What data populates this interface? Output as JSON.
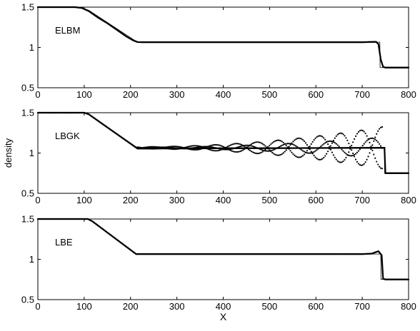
{
  "chart_data": [
    {
      "type": "line",
      "panel_label": "ELBM",
      "xlim": [
        0,
        800
      ],
      "ylim": [
        0.5,
        1.5
      ],
      "xticks": [
        "0",
        "100",
        "200",
        "300",
        "400",
        "500",
        "600",
        "700",
        "800"
      ],
      "yticks": [
        "0.5",
        "1",
        "1.5"
      ],
      "xlabel": "",
      "ylabel": "",
      "series": [
        {
          "style": "reference-thin",
          "x": [
            0,
            90,
            110,
            215,
            225,
            738,
            738.5,
            800
          ],
          "y": [
            1.5,
            1.5,
            1.46,
            1.065,
            1.065,
            1.065,
            0.75,
            0.75
          ]
        },
        {
          "style": "simulated-dots",
          "x": [
            0,
            80,
            95,
            110,
            130,
            150,
            170,
            190,
            205,
            215,
            225,
            300,
            400,
            500,
            600,
            700,
            730,
            735,
            740,
            745,
            750,
            800
          ],
          "y": [
            1.5,
            1.5,
            1.49,
            1.45,
            1.37,
            1.3,
            1.22,
            1.14,
            1.09,
            1.067,
            1.065,
            1.065,
            1.065,
            1.065,
            1.065,
            1.065,
            1.07,
            1.04,
            0.85,
            0.76,
            0.75,
            0.75
          ]
        }
      ]
    },
    {
      "type": "line",
      "panel_label": "LBGK",
      "xlim": [
        0,
        800
      ],
      "ylim": [
        0.5,
        1.5
      ],
      "xticks": [
        "0",
        "100",
        "200",
        "300",
        "400",
        "500",
        "600",
        "700",
        "800"
      ],
      "yticks": [
        "0.5",
        "1",
        "1.5"
      ],
      "xlabel": "",
      "ylabel": "density",
      "series": [
        {
          "style": "reference-thin",
          "x": [
            0,
            105,
            215,
            748,
            748.5,
            800
          ],
          "y": [
            1.5,
            1.5,
            1.065,
            1.065,
            0.75,
            0.75
          ]
        },
        {
          "style": "simulated-dots",
          "x": [
            0,
            100,
            110,
            215,
            748,
            750,
            800
          ],
          "y": [
            1.5,
            1.5,
            1.48,
            1.055,
            1.065,
            0.75,
            0.75
          ]
        },
        {
          "style": "oscillation-dots",
          "x_range": [
            215,
            745
          ],
          "center": 1.065,
          "amplitude_start": 0.012,
          "amplitude_end": 0.26,
          "wavelength": 90
        }
      ]
    },
    {
      "type": "line",
      "panel_label": "LBE",
      "xlim": [
        0,
        800
      ],
      "ylim": [
        0.5,
        1.5
      ],
      "xticks": [
        "0",
        "100",
        "200",
        "300",
        "400",
        "500",
        "600",
        "700",
        "800"
      ],
      "yticks": [
        "0.5",
        "1",
        "1.5"
      ],
      "xlabel": "X",
      "ylabel": "",
      "series": [
        {
          "style": "reference-thin",
          "x": [
            0,
            110,
            212,
            740,
            740.5,
            800
          ],
          "y": [
            1.5,
            1.5,
            1.065,
            1.065,
            0.75,
            0.75
          ]
        },
        {
          "style": "simulated-dots",
          "x": [
            0,
            108,
            118,
            212,
            700,
            720,
            735,
            742,
            745,
            750,
            800
          ],
          "y": [
            1.5,
            1.5,
            1.47,
            1.065,
            1.065,
            1.07,
            1.1,
            1.05,
            0.76,
            0.75,
            0.75
          ]
        }
      ]
    }
  ]
}
